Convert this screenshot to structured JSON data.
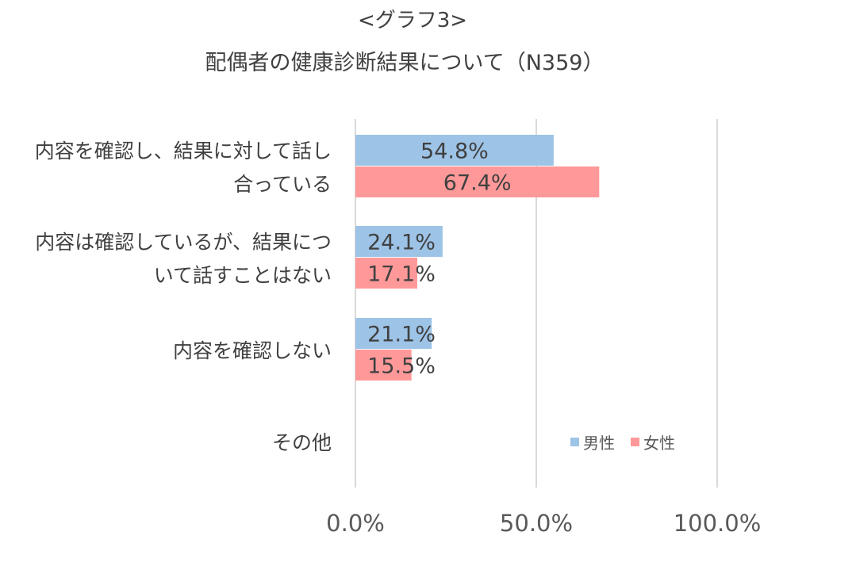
{
  "chart_data": {
    "type": "bar",
    "orientation": "horizontal",
    "title_line1": "<グラフ3>",
    "title_line2": "配偶者の健康診断結果について（N359）",
    "categories": [
      [
        "内容を確認し、結果に対して話し",
        "合っている"
      ],
      [
        "内容は確認しているが、結果につ",
        "いて話すことはない"
      ],
      [
        "内容を確認しない"
      ],
      [
        "その他"
      ]
    ],
    "series": [
      {
        "name": "男性",
        "color": "#9DC3E6",
        "values": [
          54.8,
          24.1,
          21.1,
          null
        ],
        "labels": [
          "54.8%",
          "24.1%",
          "21.1%",
          ""
        ]
      },
      {
        "name": "女性",
        "color": "#FF9999",
        "values": [
          67.4,
          17.1,
          15.5,
          null
        ],
        "labels": [
          "67.4%",
          "17.1%",
          "15.5%",
          ""
        ]
      }
    ],
    "xlim": [
      0,
      100
    ],
    "xticks": [
      0,
      50,
      100
    ],
    "xtick_labels": [
      "0.0%",
      "50.0%",
      "100.0%"
    ],
    "gridlines": true,
    "gridline_color": "#D9D9D9",
    "legend_position": "bottom-right"
  }
}
